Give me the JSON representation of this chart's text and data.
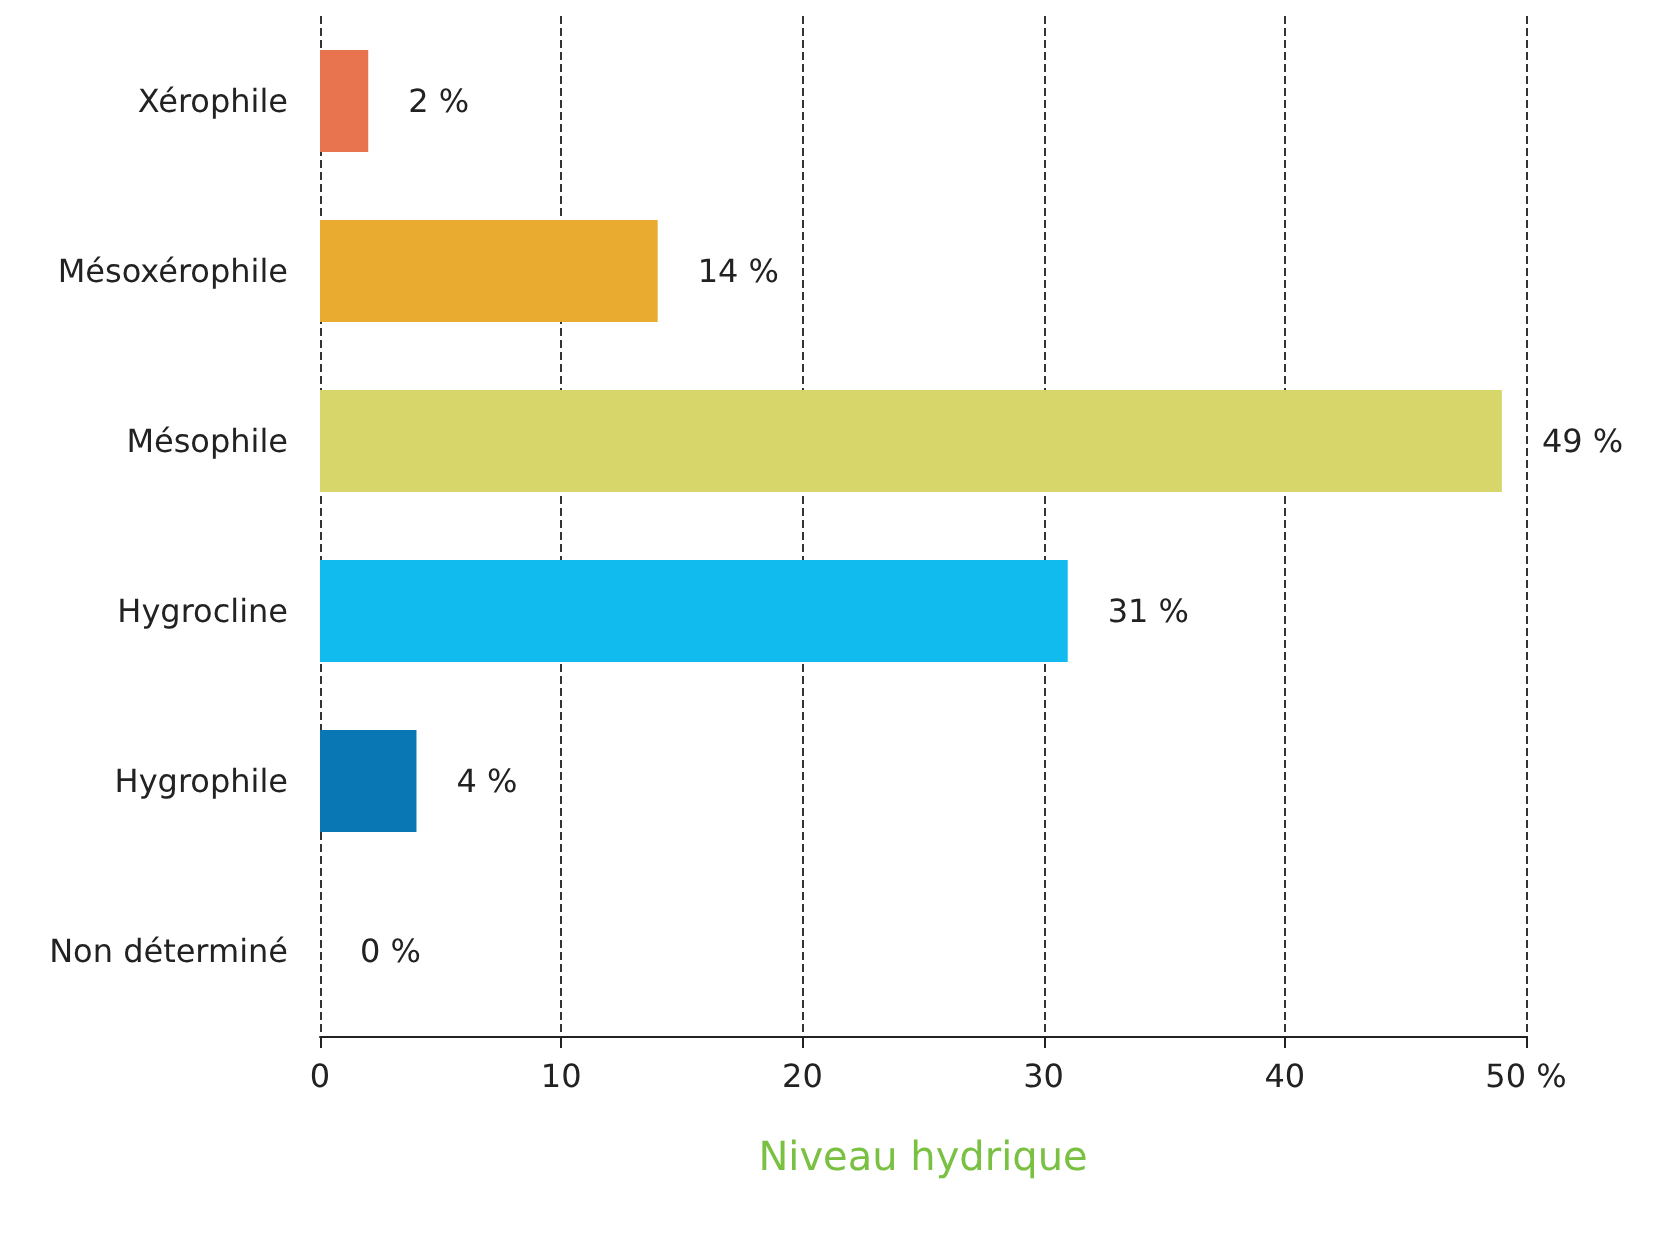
{
  "chart_data": {
    "type": "bar",
    "orientation": "horizontal",
    "categories": [
      "Xérophile",
      "Mésoxérophile",
      "Mésophile",
      "Hygrocline",
      "Hygrophile",
      "Non déterminé"
    ],
    "values": [
      2,
      14,
      49,
      31,
      4,
      0
    ],
    "colors": [
      "#e8734f",
      "#e9ac30",
      "#d6d66a",
      "#12bbee",
      "#0877b4",
      "#ffffff"
    ],
    "value_labels": [
      "2 %",
      "14 %",
      "49 %",
      "31 %",
      "4 %",
      "0 %"
    ],
    "xlabel": "Niveau hydrique",
    "xlim": [
      0,
      50
    ],
    "xticks": [
      0,
      10,
      20,
      30,
      40,
      {
        "value": 50,
        "label": "50 %"
      }
    ],
    "grid": "x"
  }
}
